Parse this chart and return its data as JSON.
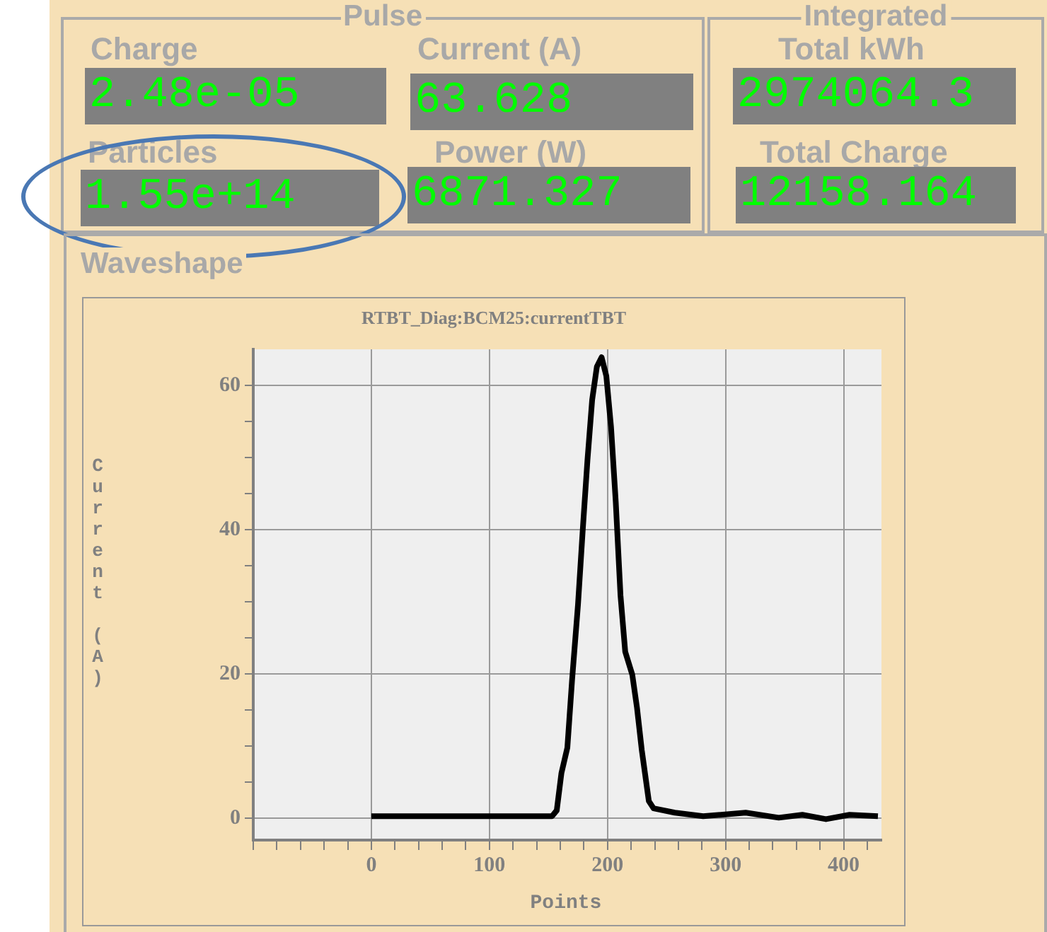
{
  "chart_data": [
    {
      "type": "other",
      "title": "Pulse",
      "annotations": [
        "Charge",
        "2.48e-05",
        "Current (A)",
        "63.628",
        "Particles",
        "1.55e+14",
        "Power (W)",
        "6871.327"
      ]
    },
    {
      "type": "other",
      "title": "Integrated",
      "annotations": [
        "Total kWh",
        "2974064.3",
        "Total Charge",
        "12158.164"
      ]
    },
    {
      "type": "line",
      "subtitle": "Waveshape",
      "title": "RTBT_Diag:BCM25:currentTBT",
      "xlabel": "Points",
      "ylabel": "Current (A)",
      "color": "#000000",
      "grid": true,
      "x": [
        0,
        153,
        157,
        161,
        166,
        170,
        175,
        179,
        183,
        187,
        191,
        195,
        199,
        203,
        207,
        211,
        215,
        221,
        225,
        229,
        235,
        239,
        257,
        281,
        303,
        317,
        345,
        365,
        385,
        405,
        429
      ],
      "values": [
        0.3,
        0.3,
        1.1,
        6.3,
        9.8,
        19.2,
        29.6,
        39.9,
        49.6,
        58,
        62.6,
        63.9,
        61.3,
        54.2,
        43.8,
        30.9,
        23.1,
        19.9,
        15.3,
        9.5,
        2.4,
        1.4,
        0.8,
        0.3,
        0.6,
        0.8,
        0.1,
        0.5,
        -0.1,
        0.5,
        0.3
      ],
      "xlim": [
        -100,
        432
      ],
      "ylim": [
        -3,
        65
      ],
      "xticks": [
        {
          "value": -100,
          "label": null
        },
        {
          "value": -80,
          "label": null
        },
        {
          "value": -60,
          "label": null
        },
        {
          "value": -40,
          "label": null
        },
        {
          "value": -20,
          "label": null
        },
        0,
        {
          "value": 20,
          "label": null
        },
        {
          "value": 40,
          "label": null
        },
        {
          "value": 60,
          "label": null
        },
        {
          "value": 80,
          "label": null
        },
        100,
        {
          "value": 120,
          "label": null
        },
        {
          "value": 140,
          "label": null
        },
        {
          "value": 160,
          "label": null
        },
        {
          "value": 180,
          "label": null
        },
        200,
        {
          "value": 220,
          "label": null
        },
        {
          "value": 240,
          "label": null
        },
        {
          "value": 260,
          "label": null
        },
        {
          "value": 280,
          "label": null
        },
        300,
        {
          "value": 320,
          "label": null
        },
        {
          "value": 340,
          "label": null
        },
        {
          "value": 360,
          "label": null
        },
        {
          "value": 380,
          "label": null
        },
        400,
        {
          "value": 420,
          "label": null
        }
      ],
      "yticks": [
        0,
        {
          "value": 5,
          "label": null
        },
        {
          "value": 10,
          "label": null
        },
        {
          "value": 15,
          "label": null
        },
        20,
        {
          "value": 25,
          "label": null
        },
        {
          "value": 30,
          "label": null
        },
        {
          "value": 35,
          "label": null
        },
        40,
        {
          "value": 45,
          "label": null
        },
        {
          "value": 50,
          "label": null
        },
        {
          "value": 55,
          "label": null
        },
        60
      ]
    }
  ]
}
